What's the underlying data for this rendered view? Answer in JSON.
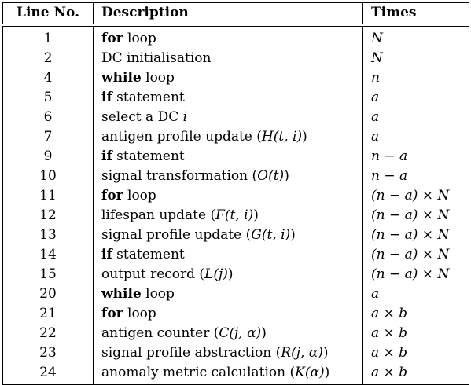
{
  "headers": {
    "line": "Line No.",
    "description": "Description",
    "times": "Times"
  },
  "rows": [
    {
      "line": "1",
      "kw": "for",
      "desc": " loop",
      "math": "",
      "times": "N"
    },
    {
      "line": "2",
      "kw": "",
      "desc": "DC initialisation",
      "math": "",
      "times": "N"
    },
    {
      "line": "4",
      "kw": "while",
      "desc": " loop",
      "math": "",
      "times": "n"
    },
    {
      "line": "5",
      "kw": "if",
      "desc": " statement",
      "math": "",
      "times": "a"
    },
    {
      "line": "6",
      "kw": "",
      "desc": "select a DC ",
      "math": "i",
      "times": "a"
    },
    {
      "line": "7",
      "kw": "",
      "desc": "antigen profile update (",
      "math": "H(t, i)",
      "times": "a"
    },
    {
      "line": "9",
      "kw": "if",
      "desc": " statement",
      "math": "",
      "times": "n − a"
    },
    {
      "line": "10",
      "kw": "",
      "desc": "signal transformation (",
      "math": "O(t)",
      "times": "n − a"
    },
    {
      "line": "11",
      "kw": "for",
      "desc": " loop",
      "math": "",
      "times": "(n − a) × N"
    },
    {
      "line": "12",
      "kw": "",
      "desc": "lifespan update (",
      "math": "F(t, i)",
      "times": "(n − a) × N"
    },
    {
      "line": "13",
      "kw": "",
      "desc": "signal profile update (",
      "math": "G(t, i)",
      "times": "(n − a) × N"
    },
    {
      "line": "14",
      "kw": "if",
      "desc": " statement",
      "math": "",
      "times": "(n − a) × N"
    },
    {
      "line": "15",
      "kw": "",
      "desc": "output record (",
      "math": "L(j)",
      "times": "(n − a) × N"
    },
    {
      "line": "20",
      "kw": "while",
      "desc": " loop",
      "math": "",
      "times": "a"
    },
    {
      "line": "21",
      "kw": "for",
      "desc": " loop",
      "math": "",
      "times": "a × b"
    },
    {
      "line": "22",
      "kw": "",
      "desc": "antigen counter (",
      "math": "C(j, α)",
      "times": "a × b"
    },
    {
      "line": "23",
      "kw": "",
      "desc": "signal profile abstraction (",
      "math": "R(j, α)",
      "times": "a × b"
    },
    {
      "line": "24",
      "kw": "",
      "desc": "anomaly metric calculation (",
      "math": "K(α)",
      "times": "a × b"
    }
  ]
}
